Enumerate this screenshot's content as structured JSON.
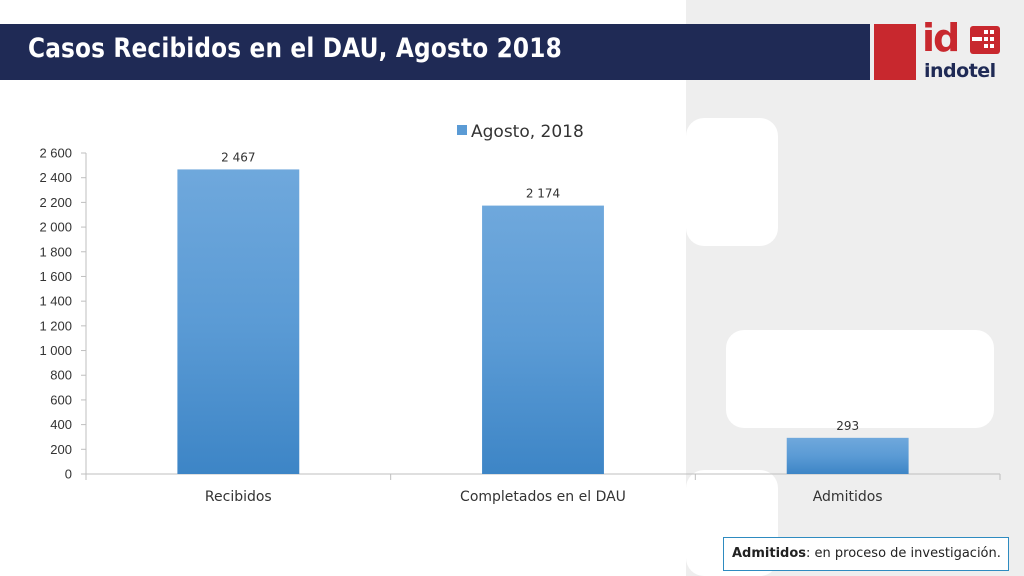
{
  "slide": {
    "title": "Casos Recibidos en el DAU, Agosto 2018",
    "logo": {
      "mark": "id",
      "name": "indotel",
      "brand_red": "#c8282e",
      "brand_navy": "#1f2a55"
    },
    "note": {
      "term": "Admitidos",
      "rest": ": en proceso de investigación."
    }
  },
  "chart_data": {
    "type": "bar",
    "title": "",
    "categories": [
      "Recibidos",
      "Completados en el DAU",
      "Admitidos"
    ],
    "series": [
      {
        "name": "Agosto, 2018",
        "values": [
          2467,
          2174,
          293
        ],
        "color": "#5b9bd5"
      }
    ],
    "data_labels": [
      "2 467",
      "2 174",
      "293"
    ],
    "y_ticks": [
      "0",
      "200",
      "400",
      "600",
      "800",
      "1 000",
      "1 200",
      "1 400",
      "1 600",
      "1 800",
      "2 000",
      "2 200",
      "2 400",
      "2 600"
    ],
    "ylim": [
      0,
      2600
    ],
    "grid": false,
    "legend": "top-right"
  }
}
